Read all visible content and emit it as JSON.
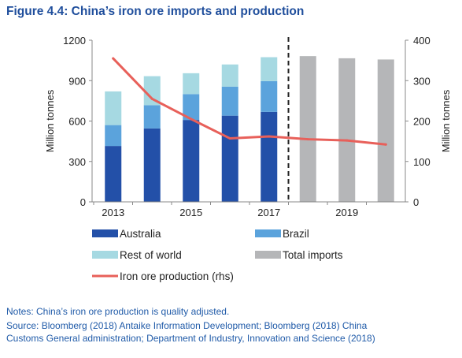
{
  "title": "Figure 4.4: China’s iron ore imports and production",
  "notes": "Notes: China’s iron ore production is quality adjusted.",
  "source_line1": "Source: Bloomberg (2018) Antaike Information Development; Bloomberg (2018) China",
  "source_line2": "Customs General administration; Department of Industry, Innovation and Science (2018)",
  "chart_data": {
    "type": "bar",
    "years": [
      2013,
      2014,
      2015,
      2016,
      2017,
      2018,
      2019,
      2020
    ],
    "x_tick_labels": [
      "2013",
      "2015",
      "2017",
      "2019"
    ],
    "ylabel": "Million tonnes",
    "y2label": "Million tonnes",
    "ylim": [
      0,
      1200
    ],
    "y_ticks": [
      "0",
      "300",
      "600",
      "900",
      "1200"
    ],
    "y2lim": [
      0,
      400
    ],
    "y2_ticks": [
      "0",
      "100",
      "200",
      "300",
      "400"
    ],
    "forecast_divider_after": 2017,
    "series": [
      {
        "name": "Australia",
        "kind": "stacked-bar",
        "color": "#2350a8",
        "values": [
          415,
          545,
          608,
          640,
          668,
          null,
          null,
          null
        ]
      },
      {
        "name": "Brazil",
        "kind": "stacked-bar",
        "color": "#5ba3dc",
        "values": [
          155,
          173,
          192,
          215,
          228,
          null,
          null,
          null
        ]
      },
      {
        "name": "Rest of world",
        "kind": "stacked-bar",
        "color": "#a6d9e2",
        "values": [
          250,
          215,
          155,
          165,
          178,
          null,
          null,
          null
        ]
      },
      {
        "name": "Total imports",
        "kind": "bar",
        "color": "#b5b6b8",
        "values": [
          null,
          null,
          null,
          null,
          null,
          1082,
          1066,
          1057
        ]
      },
      {
        "name": "Iron ore production (rhs)",
        "kind": "line",
        "axis": "right",
        "color": "#e8605a",
        "x": [
          2013,
          2014,
          2015,
          2016,
          2017,
          2018,
          2019,
          2020
        ],
        "values": [
          355,
          255,
          205,
          157,
          162,
          155,
          152,
          142
        ]
      }
    ],
    "legend": {
      "placement": "bottom",
      "items": [
        "Australia",
        "Brazil",
        "Rest of world",
        "Total imports",
        "Iron ore production (rhs)"
      ]
    }
  }
}
